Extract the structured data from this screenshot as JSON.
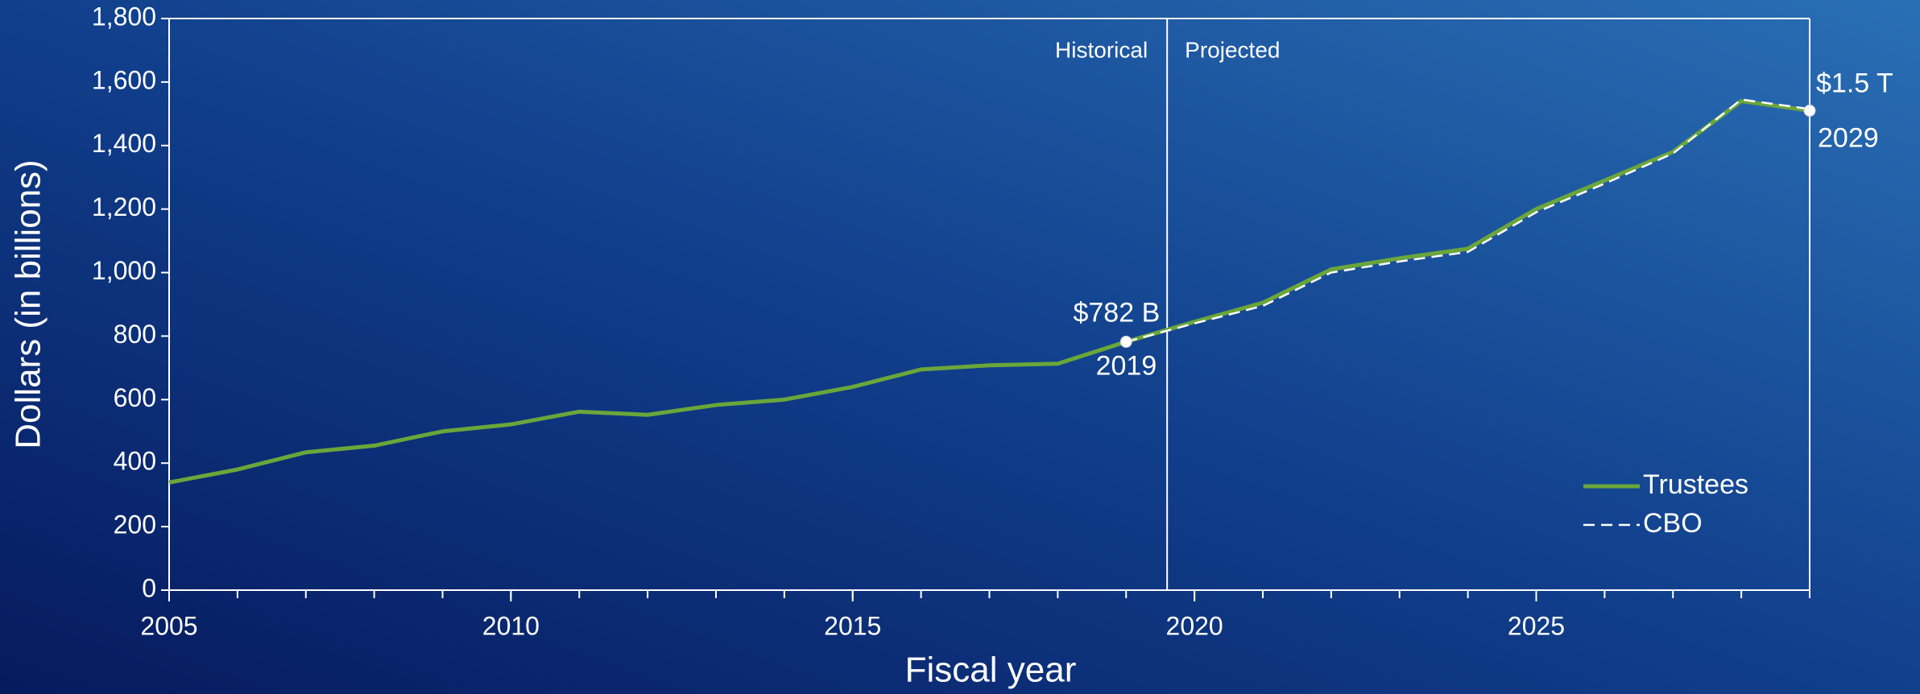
{
  "chart_data": {
    "type": "line",
    "x": [
      2005,
      2006,
      2007,
      2008,
      2009,
      2010,
      2011,
      2012,
      2013,
      2014,
      2015,
      2016,
      2017,
      2018,
      2019,
      2020,
      2021,
      2022,
      2023,
      2024,
      2025,
      2026,
      2027,
      2028,
      2029
    ],
    "series": [
      {
        "name": "Trustees",
        "color": "#6aa63a",
        "dash": false,
        "values": [
          339,
          380,
          434,
          455,
          500,
          522,
          562,
          552,
          583,
          600,
          640,
          695,
          708,
          713,
          782,
          845,
          905,
          1010,
          1045,
          1075,
          1200,
          1290,
          1380,
          1540,
          1510
        ]
      },
      {
        "name": "CBO",
        "color": "#ffffff",
        "dash": true,
        "values": [
          null,
          null,
          null,
          null,
          null,
          null,
          null,
          null,
          null,
          null,
          null,
          null,
          null,
          null,
          782,
          840,
          895,
          1000,
          1035,
          1065,
          1190,
          1280,
          1375,
          1545,
          1515
        ]
      }
    ],
    "xlabel": "Fiscal year",
    "ylabel": "Dollars (in billions)",
    "xlim": [
      2005,
      2029
    ],
    "ylim": [
      0,
      1800
    ],
    "xticks": [
      2005,
      2010,
      2015,
      2020,
      2025
    ],
    "yticks": [
      0,
      200,
      400,
      600,
      800,
      {
        "value": 1000,
        "label": "1,000"
      },
      {
        "value": 1200,
        "label": "1,200"
      },
      {
        "value": 1400,
        "label": "1,400"
      },
      {
        "value": 1600,
        "label": "1,600"
      },
      {
        "value": 1800,
        "label": "1,800"
      }
    ],
    "divider": {
      "x": 2019.6,
      "left_label": "Historical",
      "right_label": "Projected"
    },
    "annotations": [
      {
        "x": 2019,
        "y": 782,
        "text": "$782 B",
        "sublabel": "2019"
      },
      {
        "x": 2029,
        "y": 1510,
        "text": "$1.5 T",
        "sublabel": "2029"
      }
    ],
    "legend": "lower right"
  }
}
